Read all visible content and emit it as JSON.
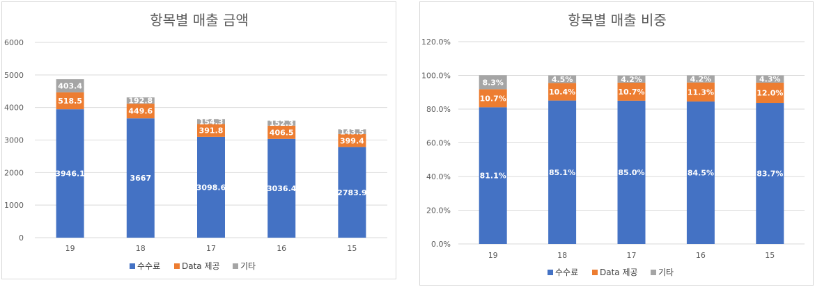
{
  "colors": {
    "series1": "#4472C4",
    "series2": "#ED7D31",
    "series3": "#A5A5A5",
    "grid": "#D9D9D9",
    "text": "#595959"
  },
  "chart_data": [
    {
      "type": "bar",
      "stacked": true,
      "title": "항목별 매출 금액",
      "categories": [
        "19",
        "18",
        "17",
        "16",
        "15"
      ],
      "ylim": [
        0,
        6000
      ],
      "yticks": [
        "0",
        "1000",
        "2000",
        "3000",
        "4000",
        "5000",
        "6000"
      ],
      "ytick_values": [
        0,
        1000,
        2000,
        3000,
        4000,
        5000,
        6000
      ],
      "grid": true,
      "legend": "bottom",
      "series": [
        {
          "name": "수수료",
          "values": [
            3946.1,
            3667,
            3098.6,
            3036.4,
            2783.9
          ],
          "labels": [
            "3946.1",
            "3667",
            "3098.6",
            "3036.4",
            "2783.9"
          ]
        },
        {
          "name": "Data 제공",
          "values": [
            518.5,
            449.6,
            391.8,
            406.5,
            399.4
          ],
          "labels": [
            "518.5",
            "449.6",
            "391.8",
            "406.5",
            "399.4"
          ]
        },
        {
          "name": "기타",
          "values": [
            403.4,
            192.8,
            154.3,
            152.3,
            143.5
          ],
          "labels": [
            "403.4",
            "192.8",
            "154.3",
            "152.3",
            "143.5"
          ]
        }
      ]
    },
    {
      "type": "bar",
      "stacked": true,
      "title": "항목별 매출 비중",
      "categories": [
        "19",
        "18",
        "17",
        "16",
        "15"
      ],
      "ylim": [
        0,
        120
      ],
      "yticks": [
        "0.0%",
        "20.0%",
        "40.0%",
        "60.0%",
        "80.0%",
        "100.0%",
        "120.0%"
      ],
      "ytick_values": [
        0,
        20,
        40,
        60,
        80,
        100,
        120
      ],
      "grid": true,
      "legend": "bottom",
      "series": [
        {
          "name": "수수료",
          "values": [
            81.1,
            85.1,
            85.0,
            84.5,
            83.7
          ],
          "labels": [
            "81.1%",
            "85.1%",
            "85.0%",
            "84.5%",
            "83.7%"
          ]
        },
        {
          "name": "Data 제공",
          "values": [
            10.7,
            10.4,
            10.7,
            11.3,
            12.0
          ],
          "labels": [
            "10.7%",
            "10.4%",
            "10.7%",
            "11.3%",
            "12.0%"
          ]
        },
        {
          "name": "기타",
          "values": [
            8.3,
            4.5,
            4.2,
            4.2,
            4.3
          ],
          "labels": [
            "8.3%",
            "4.5%",
            "4.2%",
            "4.2%",
            "4.3%"
          ]
        }
      ]
    }
  ]
}
